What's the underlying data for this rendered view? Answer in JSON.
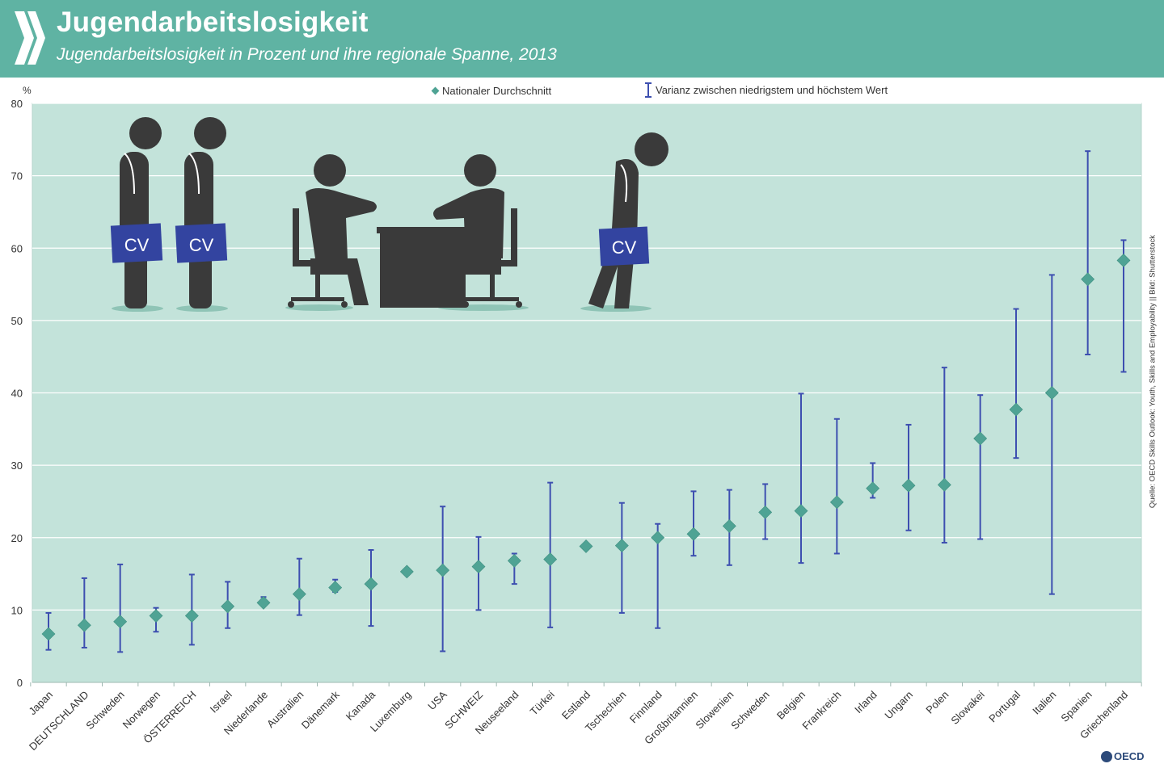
{
  "header": {
    "title": "Jugendarbeitslosigkeit",
    "subtitle": "Jugendarbeitslosigkeit in Prozent und ihre regionale Spanne, 2013"
  },
  "colors": {
    "header_bg": "#5fb3a3",
    "plot_bg": "#c3e3da",
    "marker": "#4fa394",
    "range": "#3d4fb0",
    "figure": "#3a3a3a",
    "cv_folder": "#3344a0"
  },
  "source_note": "Quelle: OECD Skills Outlook: Youth, Skills and Employability || Bild: Shutterstock",
  "brand": "OECD",
  "chart_data": {
    "type": "scatter",
    "ylabel": "%",
    "ylim": [
      0,
      80
    ],
    "yticks": [
      0,
      10,
      20,
      30,
      40,
      50,
      60,
      70,
      80
    ],
    "grid": true,
    "legend_position": "top",
    "legend": {
      "mean_label": "Nationaler Durchschnitt",
      "range_label": "Varianz zwischen niedrigstem und höchstem Wert"
    },
    "categories": [
      "Japan",
      "DEUTSCHLAND",
      "Schweden",
      "Norwegen",
      "ÖSTERREICH",
      "Israel",
      "Niederlande",
      "Australien",
      "Dänemark",
      "Kanada",
      "Luxemburg",
      "USA",
      "SCHWEIZ",
      "Neuseeland",
      "Türkei",
      "Estland",
      "Tschechien",
      "Finnland",
      "Großbritannien",
      "Slowenien",
      "Schweden",
      "Belgien",
      "Frankreich",
      "Irland",
      "Ungarn",
      "Polen",
      "Slowakei",
      "Portugal",
      "Italien",
      "Spanien",
      "Griechenland"
    ],
    "series": [
      {
        "name": "Nationaler Durchschnitt",
        "values": [
          6.7,
          7.9,
          8.4,
          9.2,
          9.2,
          10.5,
          11.0,
          12.2,
          13.1,
          13.6,
          15.3,
          15.5,
          16.0,
          16.8,
          17.0,
          18.8,
          18.9,
          20.0,
          20.5,
          21.6,
          23.5,
          23.7,
          24.9,
          26.8,
          27.2,
          27.3,
          33.7,
          37.7,
          40.0,
          55.7,
          58.3
        ]
      },
      {
        "name": "Varianz zwischen niedrigstem und höchstem Wert",
        "min": [
          4.5,
          4.8,
          4.2,
          7.0,
          5.2,
          7.5,
          10.6,
          9.3,
          12.5,
          7.8,
          null,
          4.3,
          10.0,
          13.6,
          7.6,
          null,
          9.6,
          7.5,
          17.5,
          16.2,
          19.8,
          16.5,
          17.8,
          25.5,
          21.0,
          19.3,
          19.8,
          31.0,
          12.2,
          45.3,
          42.9
        ],
        "max": [
          9.6,
          14.4,
          16.3,
          10.3,
          14.9,
          13.9,
          11.8,
          17.1,
          14.2,
          18.3,
          null,
          24.3,
          20.1,
          17.8,
          27.6,
          null,
          24.8,
          21.9,
          26.4,
          26.6,
          27.4,
          39.9,
          36.4,
          30.3,
          35.6,
          43.5,
          39.7,
          51.6,
          56.3,
          73.4,
          61.1
        ]
      }
    ]
  },
  "illustration": {
    "cv_labels": [
      "CV",
      "CV",
      "CV"
    ]
  }
}
